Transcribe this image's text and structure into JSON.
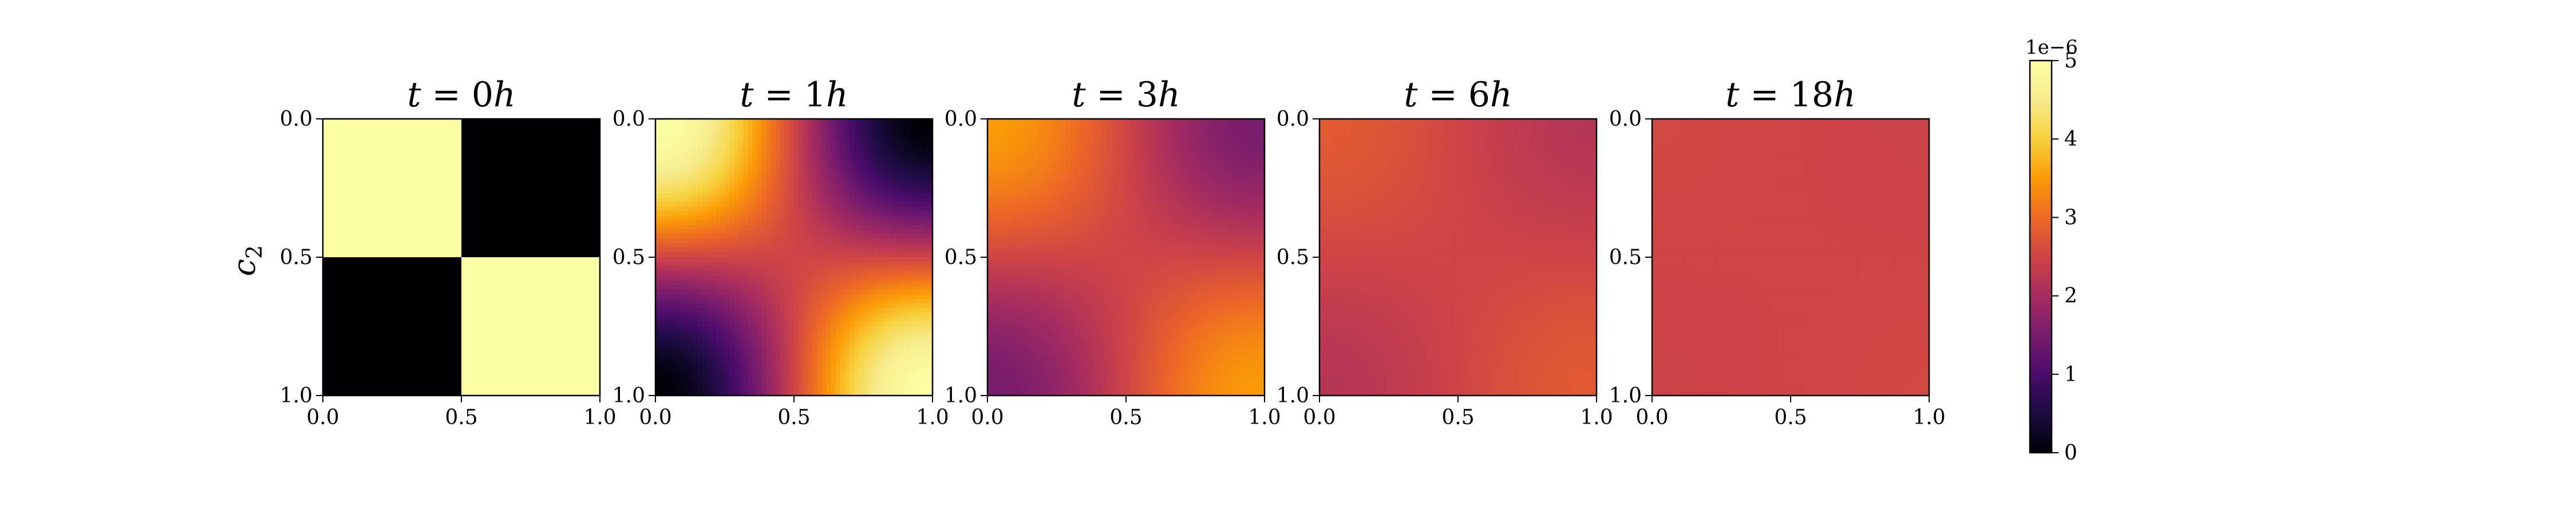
{
  "figure": {
    "background": "#ffffff"
  },
  "chart_data": {
    "type": "heatmap",
    "colormap": "inferno",
    "shared_ylabel": "c_2",
    "axes": {
      "xlim": [
        0.0,
        1.0
      ],
      "ylim": [
        0.0,
        1.0
      ],
      "y_inverted": true,
      "xticks": [
        "0.0",
        "0.5",
        "1.0"
      ],
      "yticks": [
        "0.0",
        "0.5",
        "1.0"
      ]
    },
    "panels": [
      {
        "title_prefix": "t = ",
        "title_value": "0",
        "title_unit": "h",
        "field": {
          "kind": "checkerboard",
          "min": 0.0,
          "max": 5e-06
        }
      },
      {
        "title_prefix": "t = ",
        "title_value": "1",
        "title_unit": "h",
        "field": {
          "kind": "cosine",
          "mean": 2.5e-06,
          "amplitude": 2.5e-06
        }
      },
      {
        "title_prefix": "t = ",
        "title_value": "3",
        "title_unit": "h",
        "field": {
          "kind": "cosine",
          "mean": 2.5e-06,
          "amplitude": 1e-06
        }
      },
      {
        "title_prefix": "t = ",
        "title_value": "6",
        "title_unit": "h",
        "field": {
          "kind": "cosine",
          "mean": 2.5e-06,
          "amplitude": 3e-07
        }
      },
      {
        "title_prefix": "t = ",
        "title_value": "18",
        "title_unit": "h",
        "field": {
          "kind": "cosine",
          "mean": 2.5e-06,
          "amplitude": 5e-08
        }
      }
    ],
    "colorbar": {
      "min": 0,
      "max": 5,
      "scale_label": "1e−6",
      "ticks": [
        "0",
        "1",
        "2",
        "3",
        "4",
        "5"
      ]
    }
  }
}
